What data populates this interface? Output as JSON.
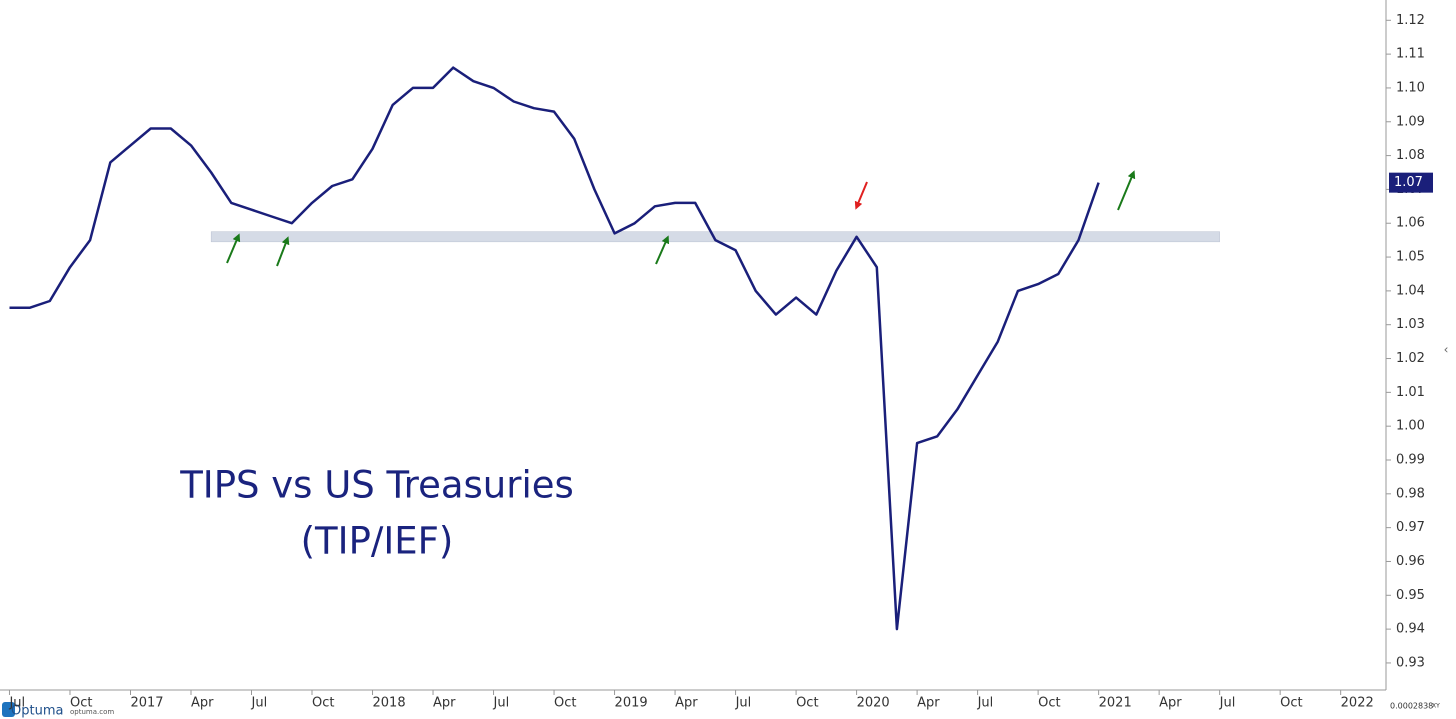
{
  "chart_data": {
    "type": "line",
    "title": "TIPS vs US Treasuries",
    "subtitle": "(TIP/IEF)",
    "x": [
      "2016-07",
      "2016-08",
      "2016-09",
      "2016-10",
      "2016-11",
      "2016-12",
      "2017-01",
      "2017-02",
      "2017-03",
      "2017-04",
      "2017-05",
      "2017-06",
      "2017-07",
      "2017-08",
      "2017-09",
      "2017-10",
      "2017-11",
      "2017-12",
      "2018-01",
      "2018-02",
      "2018-03",
      "2018-04",
      "2018-05",
      "2018-06",
      "2018-07",
      "2018-08",
      "2018-09",
      "2018-10",
      "2018-11",
      "2018-12",
      "2019-01",
      "2019-02",
      "2019-03",
      "2019-04",
      "2019-05",
      "2019-06",
      "2019-07",
      "2019-08",
      "2019-09",
      "2019-10",
      "2019-11",
      "2019-12",
      "2020-01",
      "2020-02",
      "2020-03",
      "2020-04",
      "2020-05",
      "2020-06",
      "2020-07",
      "2020-08",
      "2020-09",
      "2020-10",
      "2020-11",
      "2020-12",
      "2021-01"
    ],
    "series": [
      {
        "name": "TIP/IEF",
        "color": "#1a1f7a",
        "values": [
          1.035,
          1.035,
          1.037,
          1.047,
          1.055,
          1.078,
          1.083,
          1.088,
          1.088,
          1.083,
          1.075,
          1.066,
          1.064,
          1.062,
          1.06,
          1.066,
          1.071,
          1.073,
          1.082,
          1.095,
          1.1,
          1.1,
          1.106,
          1.102,
          1.1,
          1.096,
          1.094,
          1.093,
          1.085,
          1.07,
          1.057,
          1.06,
          1.065,
          1.066,
          1.066,
          1.055,
          1.052,
          1.04,
          1.033,
          1.038,
          1.033,
          1.046,
          1.056,
          1.047,
          0.94,
          0.995,
          0.997,
          1.005,
          1.015,
          1.025,
          1.04,
          1.042,
          1.045,
          1.055,
          1.072
        ]
      }
    ],
    "last_value_label": "1.07",
    "band": {
      "y": [
        1.0545,
        1.0575
      ],
      "x": [
        "2017-05",
        "2021-07"
      ],
      "color": "#d5dbe6"
    },
    "xlim": [
      "2016-06",
      "2022-03"
    ],
    "xticks": [
      {
        "value": "2016-07",
        "label": "Jul"
      },
      {
        "value": "2016-10",
        "label": "Oct"
      },
      {
        "value": "2017-01",
        "label": "2017"
      },
      {
        "value": "2017-04",
        "label": "Apr"
      },
      {
        "value": "2017-07",
        "label": "Jul"
      },
      {
        "value": "2017-10",
        "label": "Oct"
      },
      {
        "value": "2018-01",
        "label": "2018"
      },
      {
        "value": "2018-04",
        "label": "Apr"
      },
      {
        "value": "2018-07",
        "label": "Jul"
      },
      {
        "value": "2018-10",
        "label": "Oct"
      },
      {
        "value": "2019-01",
        "label": "2019"
      },
      {
        "value": "2019-04",
        "label": "Apr"
      },
      {
        "value": "2019-07",
        "label": "Jul"
      },
      {
        "value": "2019-10",
        "label": "Oct"
      },
      {
        "value": "2020-01",
        "label": "2020"
      },
      {
        "value": "2020-04",
        "label": "Apr"
      },
      {
        "value": "2020-07",
        "label": "Jul"
      },
      {
        "value": "2020-10",
        "label": "Oct"
      },
      {
        "value": "2021-01",
        "label": "2021"
      },
      {
        "value": "2021-04",
        "label": "Apr"
      },
      {
        "value": "2021-07",
        "label": "Jul"
      },
      {
        "value": "2021-10",
        "label": "Oct"
      },
      {
        "value": "2022-01",
        "label": "2022"
      }
    ],
    "ylim": [
      0.922,
      1.126
    ],
    "yticks": [
      0.93,
      0.94,
      0.95,
      0.96,
      0.97,
      0.98,
      0.99,
      {
        "value": 1,
        "label": "1.00"
      },
      1.01,
      1.02,
      1.03,
      1.04,
      1.05,
      1.06,
      1.07,
      1.08,
      1.09,
      {
        "value": 1.1,
        "label": "1.10"
      },
      1.11,
      1.12
    ],
    "watermark": {
      "brand": "Optuma",
      "site": "optuma.com",
      "scale": "0.0002838",
      "mode": "XY"
    }
  }
}
